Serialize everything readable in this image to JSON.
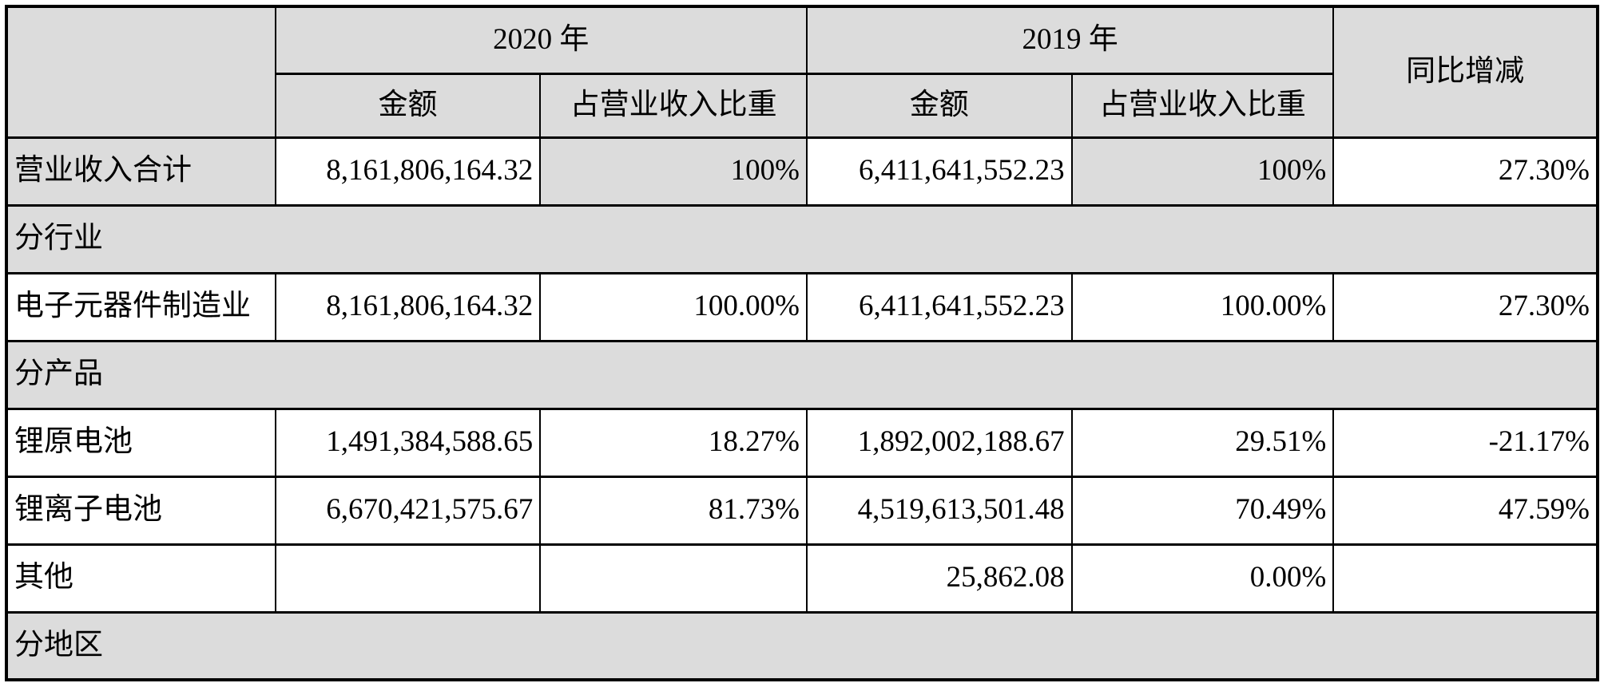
{
  "table": {
    "colors": {
      "shading": "#DCDCDC",
      "border": "#000000",
      "background": "#FFFFFF"
    },
    "header": {
      "corner": "",
      "year_2020": "2020 年",
      "year_2019": "2019 年",
      "amount": "金额",
      "ratio": "占营业收入比重",
      "yoy": "同比增减"
    },
    "rows": [
      {
        "type": "data",
        "label": "营业收入合计",
        "cells": [
          "8,161,806,164.32",
          "100%",
          "6,411,641,552.23",
          "100%",
          "27.30%"
        ],
        "shaded_cols": [
          0,
          2,
          4
        ]
      },
      {
        "type": "section",
        "label": "分行业"
      },
      {
        "type": "data",
        "label": "电子元器件制造业",
        "cells": [
          "8,161,806,164.32",
          "100.00%",
          "6,411,641,552.23",
          "100.00%",
          "27.30%"
        ],
        "shaded_cols": []
      },
      {
        "type": "section",
        "label": "分产品"
      },
      {
        "type": "data",
        "label": "锂原电池",
        "cells": [
          "1,491,384,588.65",
          "18.27%",
          "1,892,002,188.67",
          "29.51%",
          "-21.17%"
        ],
        "shaded_cols": []
      },
      {
        "type": "data",
        "label": "锂离子电池",
        "cells": [
          "6,670,421,575.67",
          "81.73%",
          "4,519,613,501.48",
          "70.49%",
          "47.59%"
        ],
        "shaded_cols": []
      },
      {
        "type": "data",
        "label": "其他",
        "cells": [
          "",
          "",
          "25,862.08",
          "0.00%",
          ""
        ],
        "shaded_cols": []
      },
      {
        "type": "section",
        "label": "分地区"
      }
    ]
  }
}
